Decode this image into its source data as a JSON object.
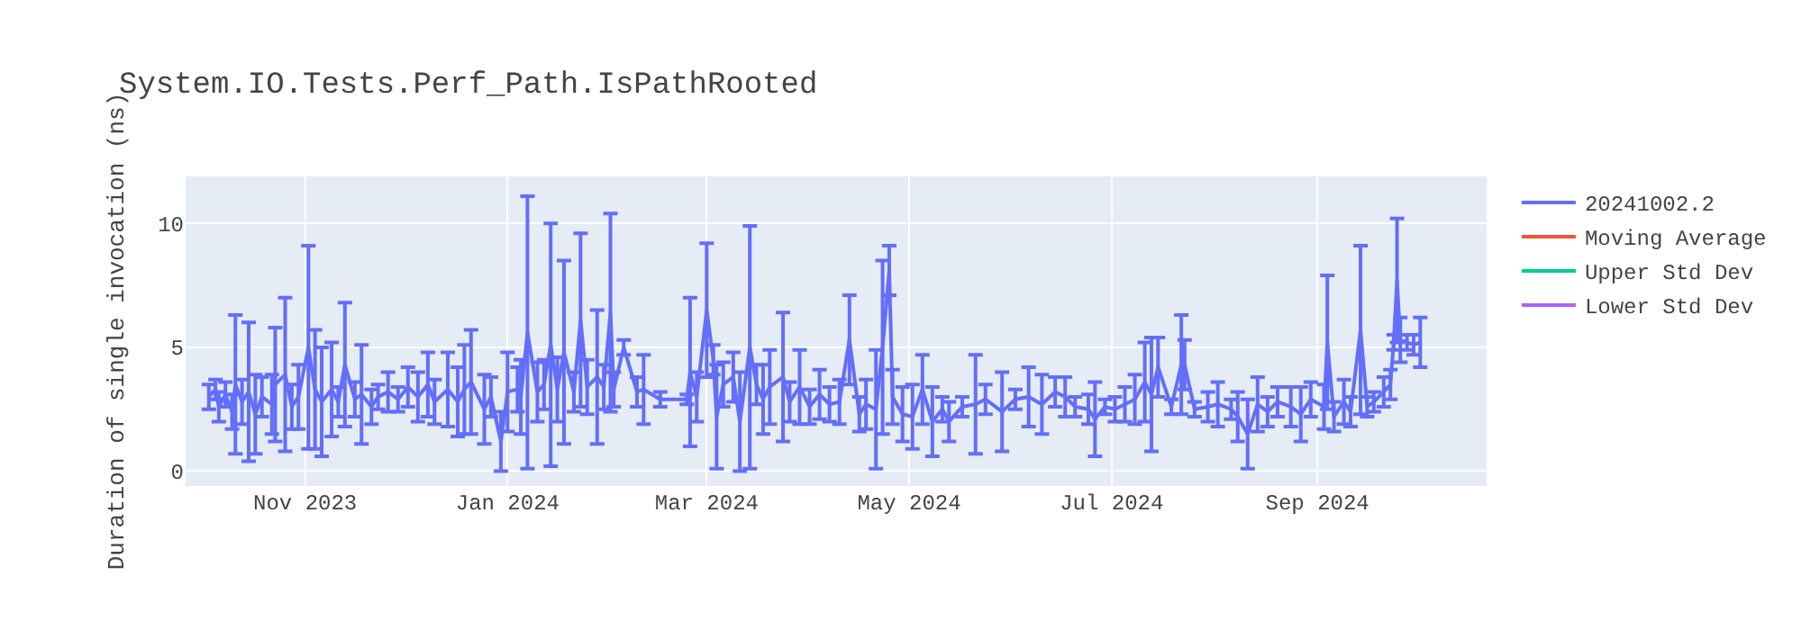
{
  "chart_data": {
    "type": "line",
    "title": "System.IO.Tests.Perf_Path.IsPathRooted",
    "ylabel": "Duration of single invocation (ns)",
    "x": [
      "2023-10-03",
      "2023-10-05",
      "2023-10-06",
      "2023-10-08",
      "2023-10-10",
      "2023-10-11",
      "2023-10-13",
      "2023-10-15",
      "2023-10-17",
      "2023-10-19",
      "2023-10-22",
      "2023-10-23",
      "2023-10-26",
      "2023-10-28",
      "2023-10-30",
      "2023-11-02",
      "2023-11-04",
      "2023-11-06",
      "2023-11-09",
      "2023-11-11",
      "2023-11-13",
      "2023-11-16",
      "2023-11-18",
      "2023-11-21",
      "2023-11-23",
      "2023-11-26",
      "2023-11-29",
      "2023-12-02",
      "2023-12-05",
      "2023-12-08",
      "2023-12-10",
      "2023-12-14",
      "2023-12-17",
      "2023-12-19",
      "2023-12-21",
      "2023-12-25",
      "2023-12-27",
      "2023-12-30",
      "2024-01-01",
      "2024-01-04",
      "2024-01-05",
      "2024-01-07",
      "2024-01-10",
      "2024-01-12",
      "2024-01-14",
      "2024-01-16",
      "2024-01-18",
      "2024-01-21",
      "2024-01-23",
      "2024-01-25",
      "2024-01-28",
      "2024-01-30",
      "2024-02-01",
      "2024-02-02",
      "2024-02-05",
      "2024-02-09",
      "2024-02-11",
      "2024-02-16",
      "2024-02-24",
      "2024-02-25",
      "2024-02-27",
      "2024-03-01",
      "2024-03-03",
      "2024-03-04",
      "2024-03-06",
      "2024-03-09",
      "2024-03-11",
      "2024-03-14",
      "2024-03-16",
      "2024-03-18",
      "2024-03-20",
      "2024-03-24",
      "2024-03-26",
      "2024-03-29",
      "2024-04-01",
      "2024-04-04",
      "2024-04-07",
      "2024-04-10",
      "2024-04-13",
      "2024-04-16",
      "2024-04-18",
      "2024-04-21",
      "2024-04-23",
      "2024-04-25",
      "2024-04-26",
      "2024-04-29",
      "2024-05-02",
      "2024-05-05",
      "2024-05-08",
      "2024-05-11",
      "2024-05-13",
      "2024-05-17",
      "2024-05-21",
      "2024-05-24",
      "2024-05-29",
      "2024-06-02",
      "2024-06-06",
      "2024-06-10",
      "2024-06-14",
      "2024-06-17",
      "2024-06-20",
      "2024-06-24",
      "2024-06-26",
      "2024-06-29",
      "2024-07-02",
      "2024-07-05",
      "2024-07-08",
      "2024-07-11",
      "2024-07-13",
      "2024-07-15",
      "2024-07-19",
      "2024-07-22",
      "2024-07-23",
      "2024-07-26",
      "2024-07-30",
      "2024-08-02",
      "2024-08-06",
      "2024-08-08",
      "2024-08-11",
      "2024-08-14",
      "2024-08-17",
      "2024-08-20",
      "2024-08-24",
      "2024-08-27",
      "2024-08-30",
      "2024-09-03",
      "2024-09-04",
      "2024-09-06",
      "2024-09-09",
      "2024-09-11",
      "2024-09-14",
      "2024-09-16",
      "2024-09-18",
      "2024-09-21",
      "2024-09-23",
      "2024-09-24",
      "2024-09-25",
      "2024-09-26",
      "2024-09-28",
      "2024-09-30",
      "2024-10-02"
    ],
    "series": [
      {
        "name": "20241002.2",
        "color": "#636efa",
        "values": [
          3.0,
          3.3,
          2.6,
          3.1,
          2.4,
          3.5,
          2.8,
          3.2,
          2.3,
          3.0,
          2.7,
          3.5,
          3.9,
          2.6,
          3.0,
          5.0,
          3.3,
          2.8,
          3.3,
          2.8,
          4.3,
          2.9,
          3.1,
          2.6,
          3.0,
          3.2,
          2.9,
          3.4,
          3.0,
          3.5,
          2.8,
          3.3,
          2.8,
          3.3,
          3.6,
          2.5,
          3.0,
          1.2,
          3.2,
          3.3,
          3.0,
          5.6,
          3.2,
          3.5,
          5.1,
          3.3,
          4.8,
          3.2,
          6.1,
          3.4,
          3.8,
          3.4,
          6.4,
          3.3,
          5.0,
          3.2,
          3.3,
          2.9,
          2.9,
          4.0,
          3.0,
          6.5,
          4.5,
          2.2,
          3.5,
          3.8,
          2.0,
          5.0,
          3.5,
          2.9,
          3.4,
          3.8,
          2.8,
          3.4,
          2.6,
          3.1,
          2.7,
          2.8,
          5.3,
          2.3,
          2.7,
          2.5,
          5.0,
          8.1,
          3.0,
          2.3,
          2.2,
          3.3,
          2.0,
          2.5,
          2.0,
          2.6,
          2.7,
          2.9,
          2.4,
          2.9,
          3.0,
          2.7,
          3.2,
          3.0,
          2.6,
          2.5,
          2.1,
          2.6,
          2.5,
          2.7,
          2.9,
          3.6,
          3.1,
          4.2,
          2.6,
          4.3,
          4.3,
          2.5,
          2.6,
          2.7,
          2.5,
          2.2,
          1.5,
          2.7,
          2.4,
          2.8,
          2.6,
          2.3,
          2.9,
          2.6,
          5.2,
          2.2,
          2.8,
          2.4,
          5.7,
          2.6,
          2.8,
          3.2,
          3.5,
          5.2,
          7.7,
          5.3,
          5.2,
          5.1,
          5.2
        ],
        "errors": [
          0.5,
          0.4,
          0.6,
          0.5,
          0.7,
          2.8,
          0.9,
          2.8,
          1.6,
          0.8,
          1.2,
          2.3,
          3.1,
          0.9,
          1.3,
          4.1,
          2.4,
          2.2,
          1.9,
          0.6,
          2.5,
          0.7,
          2.0,
          0.7,
          0.5,
          0.8,
          0.5,
          0.8,
          1.0,
          1.3,
          0.9,
          1.5,
          1.4,
          1.8,
          2.1,
          1.4,
          0.8,
          1.2,
          1.6,
          0.9,
          1.5,
          5.5,
          1.2,
          1.0,
          4.9,
          1.3,
          3.7,
          0.8,
          3.5,
          1.1,
          2.7,
          0.9,
          4.0,
          0.7,
          0.3,
          0.6,
          1.4,
          0.3,
          0.2,
          3.0,
          1.0,
          2.7,
          0.6,
          2.1,
          0.9,
          1.0,
          2.0,
          4.9,
          0.8,
          1.4,
          1.5,
          2.6,
          0.8,
          1.5,
          0.7,
          1.0,
          0.7,
          0.9,
          1.8,
          0.7,
          1.0,
          2.4,
          3.5,
          1.0,
          1.1,
          1.1,
          1.3,
          1.4,
          1.4,
          0.5,
          0.8,
          0.4,
          2.0,
          0.6,
          1.6,
          0.4,
          1.2,
          1.2,
          0.6,
          0.8,
          0.4,
          0.6,
          1.5,
          0.3,
          0.5,
          0.7,
          1.0,
          1.6,
          2.3,
          1.2,
          0.3,
          2.0,
          1.0,
          0.3,
          0.6,
          0.9,
          0.4,
          1.0,
          1.4,
          1.1,
          0.6,
          0.6,
          0.8,
          1.1,
          0.7,
          0.9,
          2.7,
          0.6,
          0.9,
          0.6,
          3.4,
          0.4,
          0.4,
          0.6,
          0.6,
          0.3,
          2.5,
          0.9,
          0.3,
          0.4,
          1.0
        ]
      },
      {
        "name": "Moving Average",
        "color": "#ef553b",
        "values": [
          null,
          null,
          null,
          null,
          null,
          null,
          null,
          null,
          null,
          null,
          null,
          null,
          null,
          null,
          null,
          null,
          null,
          null,
          null,
          null,
          null,
          null,
          null,
          null,
          null,
          null,
          null,
          null,
          null,
          null,
          null,
          null,
          null,
          null,
          null,
          null,
          null,
          null,
          null,
          null,
          null,
          null,
          null,
          null,
          null,
          null,
          null,
          null,
          null,
          null,
          null,
          null,
          null,
          null,
          null,
          null,
          null,
          null,
          null,
          null,
          null,
          null,
          null,
          null,
          null,
          null,
          null,
          null,
          null,
          null,
          null,
          null,
          null,
          null,
          null,
          null,
          null,
          null,
          null,
          null,
          null,
          null,
          null,
          null,
          null,
          null,
          null,
          null,
          null,
          null,
          null,
          null,
          null,
          null,
          null,
          null,
          null,
          null,
          null,
          null,
          null,
          null,
          null,
          null,
          null,
          null,
          null,
          null,
          null,
          null,
          null,
          null,
          null,
          null,
          null,
          null,
          null,
          null,
          null,
          null,
          null,
          null,
          null,
          null,
          null,
          null,
          null,
          null,
          null,
          null,
          null,
          null,
          null,
          null,
          null,
          null,
          null,
          null,
          null,
          null,
          null
        ]
      },
      {
        "name": "Upper Std Dev",
        "color": "#00cc96",
        "values": [
          null,
          null,
          null,
          null,
          null,
          null,
          null,
          null,
          null,
          null,
          null,
          null,
          null,
          null,
          null,
          null,
          null,
          null,
          null,
          null,
          null,
          null,
          null,
          null,
          null,
          null,
          null,
          null,
          null,
          null,
          null,
          null,
          null,
          null,
          null,
          null,
          null,
          null,
          null,
          null,
          null,
          null,
          null,
          null,
          null,
          null,
          null,
          null,
          null,
          null,
          null,
          null,
          null,
          null,
          null,
          null,
          null,
          null,
          null,
          null,
          null,
          null,
          null,
          null,
          null,
          null,
          null,
          null,
          null,
          null,
          null,
          null,
          null,
          null,
          null,
          null,
          null,
          null,
          null,
          null,
          null,
          null,
          null,
          null,
          null,
          null,
          null,
          null,
          null,
          null,
          null,
          null,
          null,
          null,
          null,
          null,
          null,
          null,
          null,
          null,
          null,
          null,
          null,
          null,
          null,
          null,
          null,
          null,
          null,
          null,
          null,
          null,
          null,
          null,
          null,
          null,
          null,
          null,
          null,
          null,
          null,
          null,
          null,
          null,
          null,
          null,
          null,
          null,
          null,
          null,
          null,
          null,
          null,
          null,
          null,
          null,
          null,
          null,
          null,
          null,
          null
        ]
      },
      {
        "name": "Lower Std Dev",
        "color": "#ab63fa",
        "values": [
          null,
          null,
          null,
          null,
          null,
          null,
          null,
          null,
          null,
          null,
          null,
          null,
          null,
          null,
          null,
          null,
          null,
          null,
          null,
          null,
          null,
          null,
          null,
          null,
          null,
          null,
          null,
          null,
          null,
          null,
          null,
          null,
          null,
          null,
          null,
          null,
          null,
          null,
          null,
          null,
          null,
          null,
          null,
          null,
          null,
          null,
          null,
          null,
          null,
          null,
          null,
          null,
          null,
          null,
          null,
          null,
          null,
          null,
          null,
          null,
          null,
          null,
          null,
          null,
          null,
          null,
          null,
          null,
          null,
          null,
          null,
          null,
          null,
          null,
          null,
          null,
          null,
          null,
          null,
          null,
          null,
          null,
          null,
          null,
          null,
          null,
          null,
          null,
          null,
          null,
          null,
          null,
          null,
          null,
          null,
          null,
          null,
          null,
          null,
          null,
          null,
          null,
          null,
          null,
          null,
          null,
          null,
          null,
          null,
          null,
          null,
          null,
          null,
          null,
          null,
          null,
          null,
          null,
          null,
          null,
          null,
          null,
          null,
          null,
          null,
          null,
          null,
          null,
          null,
          null,
          null,
          null,
          null,
          null,
          null,
          null,
          null,
          null,
          null,
          null,
          null
        ]
      }
    ],
    "xlim": [
      "2023-09-26",
      "2024-10-22"
    ],
    "xticks": [
      {
        "value": "2023-11-01",
        "label": "Nov 2023"
      },
      {
        "value": "2024-01-01",
        "label": "Jan 2024"
      },
      {
        "value": "2024-03-01",
        "label": "Mar 2024"
      },
      {
        "value": "2024-05-01",
        "label": "May 2024"
      },
      {
        "value": "2024-07-01",
        "label": "Jul 2024"
      },
      {
        "value": "2024-09-01",
        "label": "Sep 2024"
      }
    ],
    "ylim": [
      -0.6,
      11.9
    ],
    "yticks": [
      0,
      5,
      10
    ],
    "grid": true,
    "legend": "top right",
    "line_style": "solid",
    "marker": "none"
  }
}
